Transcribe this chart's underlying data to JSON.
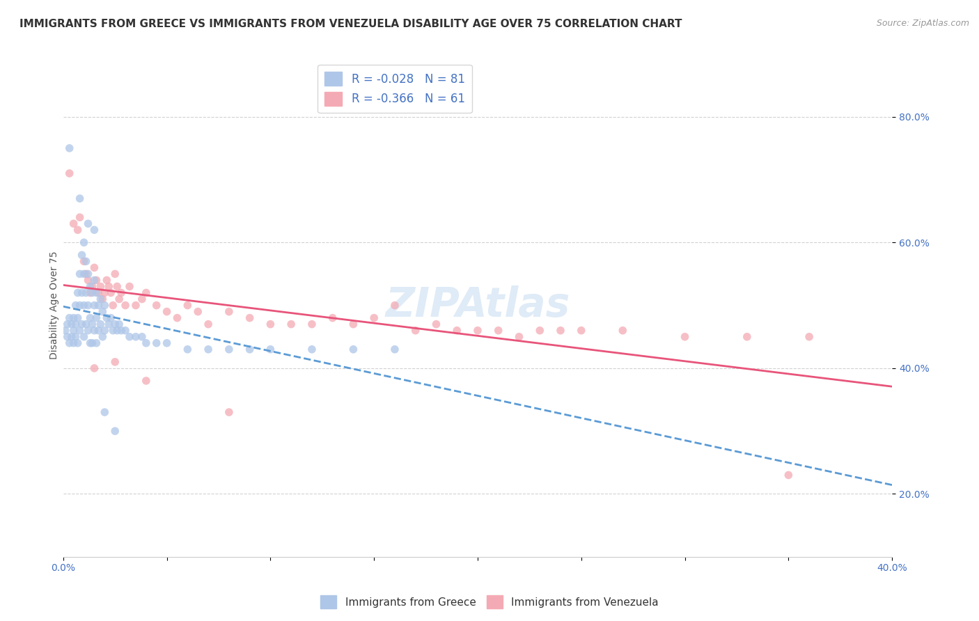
{
  "title": "IMMIGRANTS FROM GREECE VS IMMIGRANTS FROM VENEZUELA DISABILITY AGE OVER 75 CORRELATION CHART",
  "source": "Source: ZipAtlas.com",
  "ylabel": "Disability Age Over 75",
  "xlim": [
    0.0,
    0.4
  ],
  "ylim": [
    0.1,
    0.9
  ],
  "x_tick_positions": [
    0.0,
    0.05,
    0.1,
    0.15,
    0.2,
    0.25,
    0.3,
    0.35,
    0.4
  ],
  "x_tick_labels": [
    "0.0%",
    "",
    "",
    "",
    "",
    "",
    "",
    "",
    "40.0%"
  ],
  "y_tick_positions": [
    0.2,
    0.4,
    0.6,
    0.8
  ],
  "y_tick_labels": [
    "20.0%",
    "40.0%",
    "60.0%",
    "80.0%"
  ],
  "greece_color": "#aec6e8",
  "venezuela_color": "#f4aab4",
  "greece_line_color": "#5b9bd5",
  "venezuela_line_color": "#e8547a",
  "greece_R": -0.028,
  "greece_N": 81,
  "venezuela_R": -0.366,
  "venezuela_N": 61,
  "greece_scatter_x": [
    0.001,
    0.002,
    0.002,
    0.003,
    0.003,
    0.004,
    0.004,
    0.005,
    0.005,
    0.005,
    0.006,
    0.006,
    0.006,
    0.007,
    0.007,
    0.007,
    0.008,
    0.008,
    0.008,
    0.009,
    0.009,
    0.009,
    0.01,
    0.01,
    0.01,
    0.01,
    0.011,
    0.011,
    0.011,
    0.012,
    0.012,
    0.012,
    0.013,
    0.013,
    0.013,
    0.014,
    0.014,
    0.014,
    0.015,
    0.015,
    0.015,
    0.016,
    0.016,
    0.016,
    0.017,
    0.017,
    0.018,
    0.018,
    0.019,
    0.019,
    0.02,
    0.02,
    0.021,
    0.022,
    0.023,
    0.024,
    0.025,
    0.026,
    0.027,
    0.028,
    0.03,
    0.032,
    0.035,
    0.038,
    0.04,
    0.045,
    0.05,
    0.06,
    0.07,
    0.08,
    0.09,
    0.1,
    0.12,
    0.14,
    0.16,
    0.003,
    0.008,
    0.012,
    0.015,
    0.02,
    0.025
  ],
  "greece_scatter_y": [
    0.46,
    0.47,
    0.45,
    0.48,
    0.44,
    0.47,
    0.45,
    0.46,
    0.48,
    0.44,
    0.5,
    0.47,
    0.45,
    0.52,
    0.48,
    0.44,
    0.55,
    0.5,
    0.46,
    0.58,
    0.52,
    0.47,
    0.6,
    0.55,
    0.5,
    0.45,
    0.57,
    0.52,
    0.47,
    0.55,
    0.5,
    0.46,
    0.53,
    0.48,
    0.44,
    0.52,
    0.47,
    0.44,
    0.54,
    0.5,
    0.46,
    0.52,
    0.48,
    0.44,
    0.5,
    0.46,
    0.51,
    0.47,
    0.49,
    0.45,
    0.5,
    0.46,
    0.48,
    0.47,
    0.48,
    0.46,
    0.47,
    0.46,
    0.47,
    0.46,
    0.46,
    0.45,
    0.45,
    0.45,
    0.44,
    0.44,
    0.44,
    0.43,
    0.43,
    0.43,
    0.43,
    0.43,
    0.43,
    0.43,
    0.43,
    0.75,
    0.67,
    0.63,
    0.62,
    0.33,
    0.3
  ],
  "venezuela_scatter_x": [
    0.003,
    0.005,
    0.007,
    0.008,
    0.01,
    0.011,
    0.012,
    0.013,
    0.014,
    0.015,
    0.016,
    0.017,
    0.018,
    0.019,
    0.02,
    0.021,
    0.022,
    0.023,
    0.024,
    0.025,
    0.026,
    0.027,
    0.028,
    0.03,
    0.032,
    0.035,
    0.038,
    0.04,
    0.045,
    0.05,
    0.055,
    0.06,
    0.065,
    0.07,
    0.08,
    0.09,
    0.1,
    0.11,
    0.12,
    0.13,
    0.14,
    0.15,
    0.16,
    0.17,
    0.18,
    0.19,
    0.2,
    0.21,
    0.22,
    0.23,
    0.24,
    0.25,
    0.27,
    0.3,
    0.33,
    0.36,
    0.015,
    0.025,
    0.04,
    0.08,
    0.35
  ],
  "venezuela_scatter_y": [
    0.71,
    0.63,
    0.62,
    0.64,
    0.57,
    0.55,
    0.54,
    0.52,
    0.53,
    0.56,
    0.54,
    0.52,
    0.53,
    0.51,
    0.52,
    0.54,
    0.53,
    0.52,
    0.5,
    0.55,
    0.53,
    0.51,
    0.52,
    0.5,
    0.53,
    0.5,
    0.51,
    0.52,
    0.5,
    0.49,
    0.48,
    0.5,
    0.49,
    0.47,
    0.49,
    0.48,
    0.47,
    0.47,
    0.47,
    0.48,
    0.47,
    0.48,
    0.5,
    0.46,
    0.47,
    0.46,
    0.46,
    0.46,
    0.45,
    0.46,
    0.46,
    0.46,
    0.46,
    0.45,
    0.45,
    0.45,
    0.4,
    0.41,
    0.38,
    0.33,
    0.23
  ],
  "watermark": "ZIPAtlas",
  "background_color": "#ffffff",
  "grid_color": "#cccccc",
  "title_fontsize": 11,
  "axis_label_fontsize": 10,
  "tick_fontsize": 10,
  "tick_color": "#4472c4"
}
